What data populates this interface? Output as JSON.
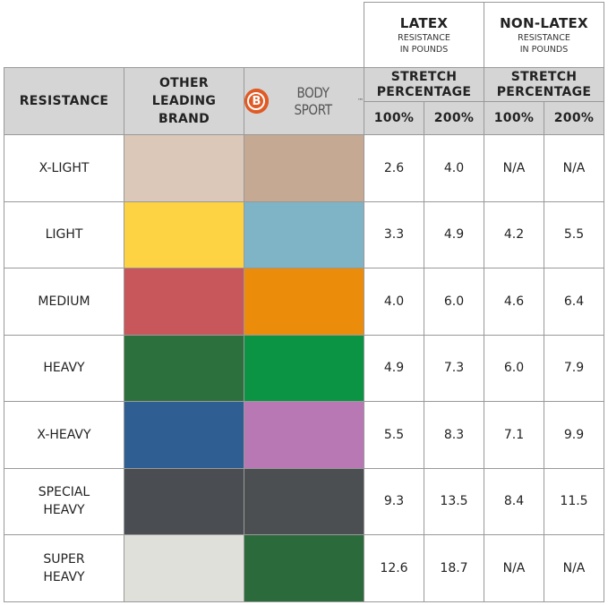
{
  "header": {
    "latex": {
      "title": "LATEX",
      "sub1": "RESISTANCE",
      "sub2": "IN POUNDS",
      "stretch1": "STRETCH",
      "stretch2": "PERCENTAGE"
    },
    "nonlatex": {
      "title": "NON-LATEX",
      "sub1": "RESISTANCE",
      "sub2": "IN POUNDS",
      "stretch1": "STRETCH",
      "stretch2": "PERCENTAGE"
    },
    "resistance": "RESISTANCE",
    "other1": "OTHER",
    "other2": "LEADING",
    "other3": "BRAND",
    "logo": {
      "letter": "B",
      "text": "BODY SPORT",
      "tm": "™"
    },
    "p100": "100%",
    "p200": "200%"
  },
  "rows": [
    {
      "l1": "X-LIGHT",
      "l2": "",
      "other": "#dcc8b8",
      "bodysport": "#c6a992",
      "lat100": "2.6",
      "lat200": "4.0",
      "nl100": "N/A",
      "nl200": "N/A"
    },
    {
      "l1": "LIGHT",
      "l2": "",
      "other": "#fdd343",
      "bodysport": "#7fb3c6",
      "lat100": "3.3",
      "lat200": "4.9",
      "nl100": "4.2",
      "nl200": "5.5"
    },
    {
      "l1": "MEDIUM",
      "l2": "",
      "other": "#c8575c",
      "bodysport": "#ec8c0b",
      "lat100": "4.0",
      "lat200": "6.0",
      "nl100": "4.6",
      "nl200": "6.4"
    },
    {
      "l1": "HEAVY",
      "l2": "",
      "other": "#2c703e",
      "bodysport": "#0b9444",
      "lat100": "4.9",
      "lat200": "7.3",
      "nl100": "6.0",
      "nl200": "7.9"
    },
    {
      "l1": "X-HEAVY",
      "l2": "",
      "other": "#2f5e93",
      "bodysport": "#b878b3",
      "lat100": "5.5",
      "lat200": "8.3",
      "nl100": "7.1",
      "nl200": "9.9"
    },
    {
      "l1": "SPECIAL",
      "l2": "HEAVY",
      "other": "#4a4e52",
      "bodysport": "#4b4f52",
      "lat100": "9.3",
      "lat200": "13.5",
      "nl100": "8.4",
      "nl200": "11.5"
    },
    {
      "l1": "SUPER",
      "l2": "HEAVY",
      "other": "#e0e0da",
      "bodysport": "#2b6b3b",
      "lat100": "12.6",
      "lat200": "18.7",
      "nl100": "N/A",
      "nl200": "N/A"
    }
  ]
}
